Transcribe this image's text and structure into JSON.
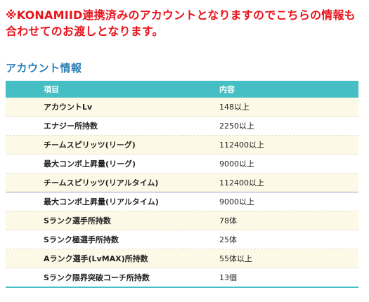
{
  "notice": "※KONAMIID連携済みのアカウントとなりますのでこちらの情報も合わせてのお渡しとなります。",
  "section_title": "アカウント情報",
  "table": {
    "headers": [
      "項目",
      "内容"
    ],
    "rows": [
      {
        "item": "アカウントLv",
        "value": "148以上"
      },
      {
        "item": "エナジー所持数",
        "value": "2250以上"
      },
      {
        "item": "チームスピリッツ(リーグ)",
        "value": "112400以上"
      },
      {
        "item": "最大コンボ上昇量(リーグ)",
        "value": "9000以上"
      },
      {
        "item": "チームスピリッツ(リアルタイム)",
        "value": "112400以上"
      },
      {
        "item": "最大コンボ上昇量(リアルタイム)",
        "value": "9000以上"
      },
      {
        "item": "Sランク選手所持数",
        "value": "78体"
      },
      {
        "item": "Sランク極選手所持数",
        "value": "25体"
      },
      {
        "item": "Aランク選手(LvMAX)所持数",
        "value": "55体以上"
      },
      {
        "item": "Sランク限界突破コーチ所持数",
        "value": "13個"
      }
    ]
  },
  "colors": {
    "notice": "#e8141c",
    "section_title": "#2b7fb5",
    "header_bg": "#45bec4",
    "row_alt_bg": "#fdf9e7"
  }
}
